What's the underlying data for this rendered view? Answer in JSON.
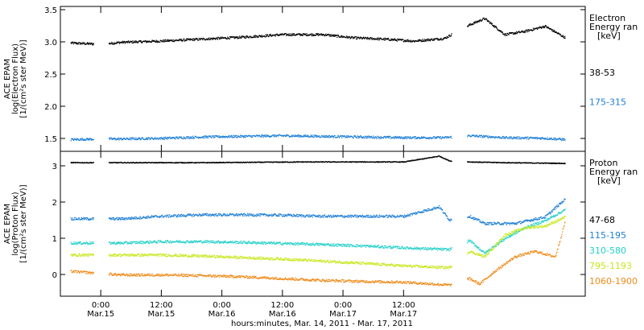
{
  "figure": {
    "xaxis_title": "hours:minutes, Mar. 14, 2011 - Mar. 17, 2011",
    "x_ticks": [
      {
        "time": "0:00",
        "date": "Mar.15"
      },
      {
        "time": "12:00",
        "date": "Mar.15"
      },
      {
        "time": "0:00",
        "date": "Mar.16"
      },
      {
        "time": "12:00",
        "date": "Mar.16"
      },
      {
        "time": "0:00",
        "date": "Mar.17"
      },
      {
        "time": "12:00",
        "date": "Mar.17"
      }
    ]
  },
  "colors": {
    "black": "#000000",
    "blue": "#1f7fd6",
    "cyan": "#22d0c8",
    "yellow": "#c6e81c",
    "orange": "#f08a1a"
  },
  "chart_data": [
    {
      "type": "scatter",
      "ylabel_lines": [
        "ACE EPAM",
        "log(Electron Flux)",
        "[1/(cm²s ster MeV)]"
      ],
      "xlim_hours": [
        -8,
        96
      ],
      "ylim": [
        1.3,
        3.55
      ],
      "y_ticks": [
        "1.5",
        "2.0",
        "2.5",
        "3.0",
        "3.5"
      ],
      "legend_title_lines": [
        "Electron",
        "Energy ran",
        "[keV]"
      ],
      "gaps_hours": [
        [
          -1.5,
          1.5
        ],
        [
          69.5,
          72.5
        ]
      ],
      "series": [
        {
          "name": "38-53",
          "color": "#000000",
          "x": [
            -6,
            0,
            4,
            12,
            20,
            28,
            36,
            44,
            50,
            56,
            62,
            68,
            73,
            76,
            80,
            84,
            88,
            92
          ],
          "y": [
            2.99,
            2.97,
            3.0,
            3.02,
            3.05,
            3.08,
            3.12,
            3.12,
            3.07,
            3.05,
            3.02,
            3.06,
            3.27,
            3.37,
            3.12,
            3.17,
            3.25,
            3.07
          ]
        },
        {
          "name": "175-315",
          "color": "#1f7fd6",
          "x": [
            -6,
            0,
            4,
            12,
            20,
            28,
            36,
            44,
            52,
            60,
            68,
            73,
            80,
            88,
            92
          ],
          "y": [
            1.49,
            1.5,
            1.5,
            1.51,
            1.53,
            1.54,
            1.55,
            1.54,
            1.53,
            1.52,
            1.52,
            1.55,
            1.52,
            1.51,
            1.49
          ]
        }
      ]
    },
    {
      "type": "scatter",
      "ylabel_lines": [
        "ACE EPAM",
        "log(Proton Flux)",
        "[1/(cm²s ster MeV)]"
      ],
      "xlim_hours": [
        -8,
        96
      ],
      "ylim": [
        -0.6,
        3.4
      ],
      "y_ticks": [
        "0",
        "1",
        "2",
        "3"
      ],
      "legend_title_lines": [
        "Proton",
        "Energy ran",
        "[keV]"
      ],
      "gaps_hours": [
        [
          -1.5,
          1.5
        ],
        [
          69.5,
          72.5
        ]
      ],
      "series": [
        {
          "name": "47-68",
          "color": "#000000",
          "x": [
            -6,
            4,
            20,
            40,
            60,
            67,
            69,
            73,
            80,
            92
          ],
          "y": [
            3.1,
            3.1,
            3.1,
            3.12,
            3.12,
            3.28,
            3.15,
            3.12,
            3.1,
            3.08
          ]
        },
        {
          "name": "115-195",
          "color": "#1f7fd6",
          "x": [
            -6,
            4,
            12,
            20,
            28,
            36,
            44,
            52,
            60,
            67,
            69,
            73,
            76,
            82,
            88,
            92
          ],
          "y": [
            1.55,
            1.55,
            1.62,
            1.66,
            1.66,
            1.65,
            1.62,
            1.62,
            1.62,
            1.88,
            1.52,
            1.62,
            1.42,
            1.42,
            1.6,
            2.1
          ]
        },
        {
          "name": "310-580",
          "color": "#22d0c8",
          "x": [
            -6,
            4,
            12,
            20,
            28,
            36,
            44,
            52,
            60,
            69,
            73,
            76,
            80,
            84,
            88,
            92
          ],
          "y": [
            0.88,
            0.88,
            0.92,
            0.92,
            0.9,
            0.87,
            0.84,
            0.8,
            0.75,
            0.7,
            0.95,
            0.6,
            1.0,
            1.3,
            1.5,
            1.8
          ]
        },
        {
          "name": "795-1193",
          "color": "#c6e81c",
          "x": [
            -6,
            4,
            12,
            20,
            28,
            36,
            44,
            52,
            60,
            69,
            73,
            76,
            80,
            84,
            88,
            92
          ],
          "y": [
            0.55,
            0.55,
            0.55,
            0.52,
            0.48,
            0.44,
            0.38,
            0.32,
            0.25,
            0.2,
            0.65,
            0.5,
            1.1,
            1.3,
            1.35,
            1.6
          ]
        },
        {
          "name": "1060-1900",
          "color": "#f08a1a",
          "x": [
            -6,
            4,
            12,
            20,
            28,
            36,
            44,
            52,
            60,
            69,
            73,
            75,
            78,
            82,
            86,
            90,
            92
          ],
          "y": [
            0.1,
            0.0,
            0.0,
            -0.02,
            -0.05,
            -0.1,
            -0.15,
            -0.18,
            -0.2,
            -0.28,
            -0.1,
            -0.25,
            0.1,
            0.5,
            0.65,
            0.5,
            1.5
          ]
        }
      ]
    }
  ]
}
